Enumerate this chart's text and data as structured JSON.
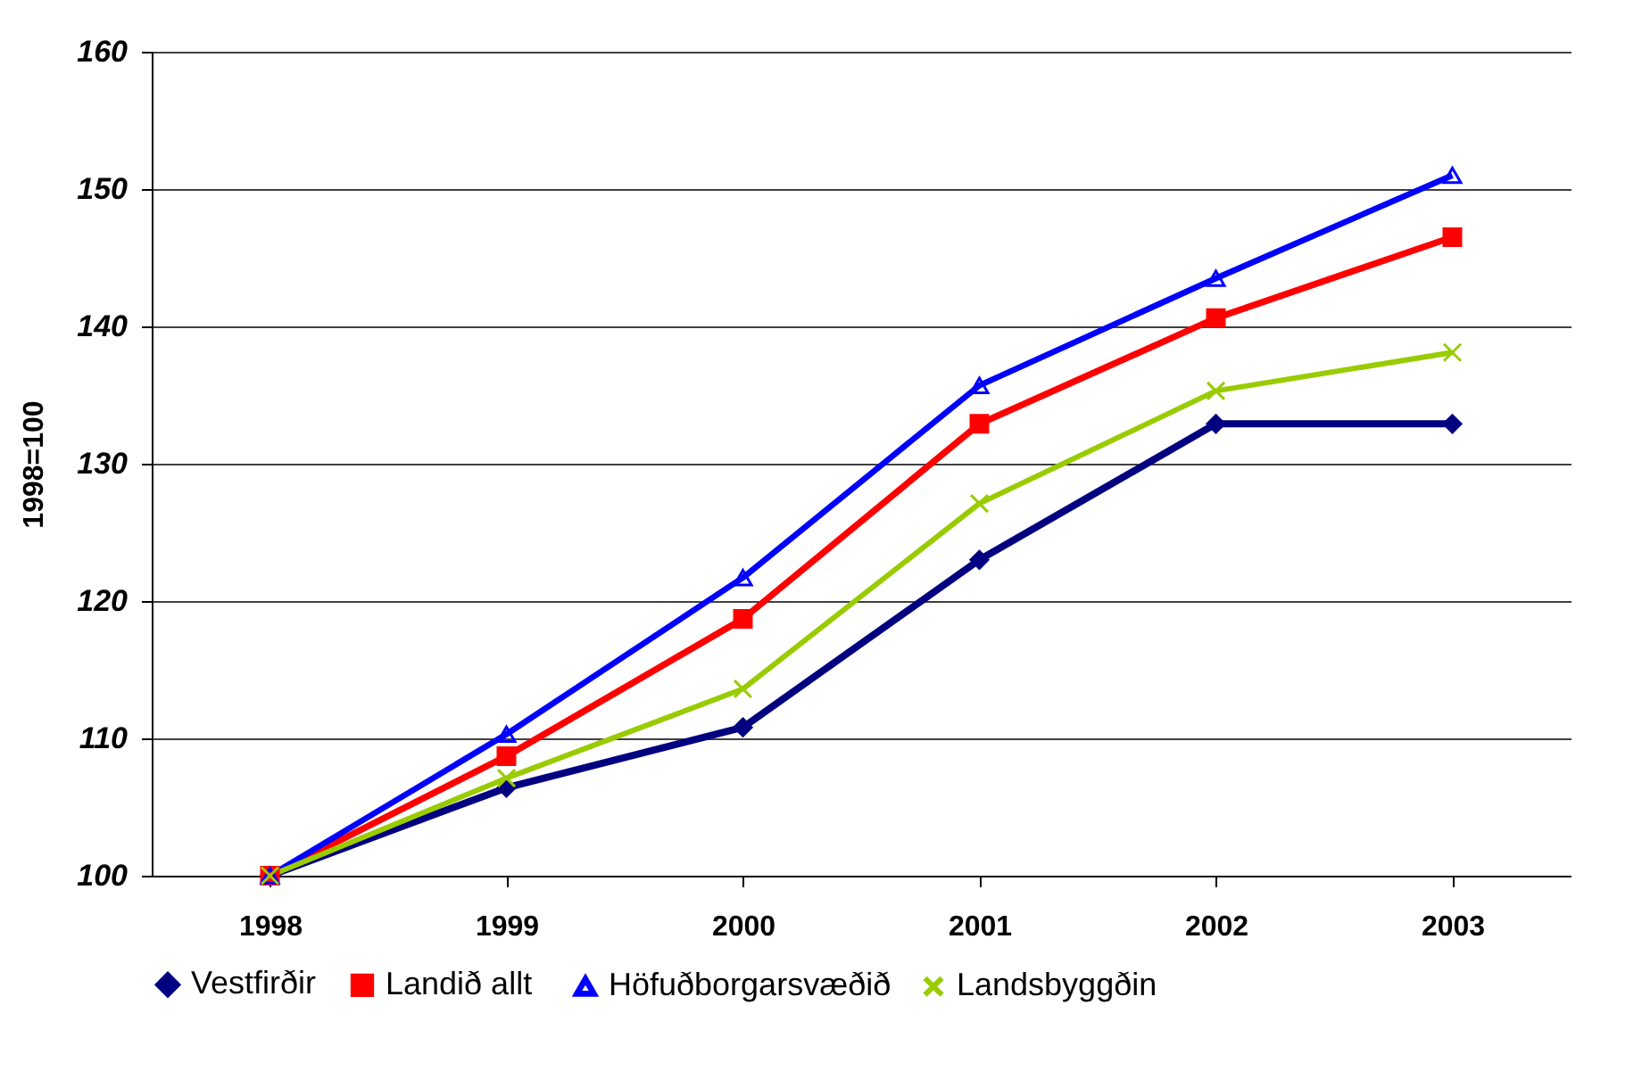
{
  "chart_data": {
    "type": "line",
    "ylabel": "1998=100",
    "categories": [
      "1998",
      "1999",
      "2000",
      "2001",
      "2002",
      "2003"
    ],
    "series": [
      {
        "name": "Vestfirðir",
        "color": "#000080",
        "marker": "diamond",
        "values": [
          100,
          106.4,
          110.8,
          123,
          132.9,
          132.9
        ]
      },
      {
        "name": "Landið  allt",
        "color": "#ff0000",
        "marker": "square",
        "values": [
          100,
          108.7,
          118.7,
          132.9,
          140.6,
          146.5
        ]
      },
      {
        "name": "Höfuðborgarsvæðið",
        "color": "#0000ff",
        "marker": "triangle",
        "values": [
          100,
          110.3,
          121.7,
          135.7,
          143.5,
          151
        ]
      },
      {
        "name": "Landsbyggðin",
        "color": "#99cc00",
        "marker": "cross",
        "values": [
          100,
          107.1,
          113.6,
          127.1,
          135.3,
          138.1
        ]
      }
    ],
    "ylim": [
      100,
      160
    ],
    "yticks": [
      100,
      110,
      120,
      130,
      140,
      150,
      160
    ],
    "grid": "y",
    "legend": "bottom"
  }
}
